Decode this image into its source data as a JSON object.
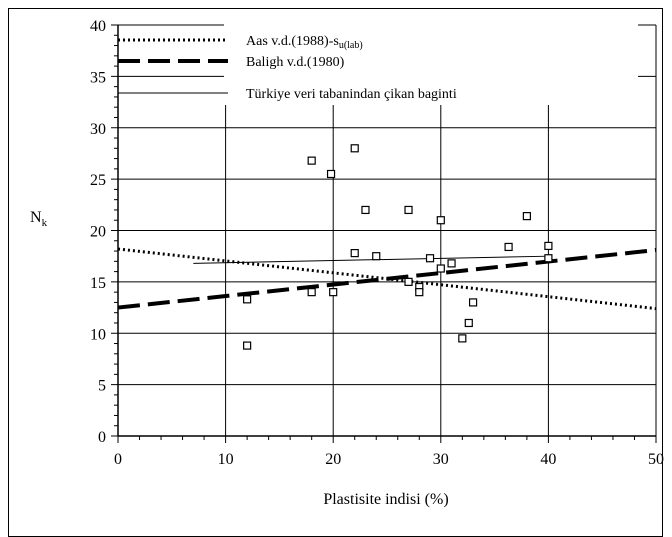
{
  "chart_data": {
    "type": "scatter",
    "title": "",
    "xlabel": "Plastisite indisi (%)",
    "ylabel": "N",
    "ylabel_sub": "k",
    "xlim": [
      0,
      50
    ],
    "ylim": [
      0,
      40
    ],
    "xticks": [
      0,
      10,
      20,
      30,
      40,
      50
    ],
    "yticks": [
      0,
      5,
      10,
      15,
      20,
      25,
      30,
      35,
      40
    ],
    "x_minor_step": 2,
    "y_minor_step": 1,
    "grid": true,
    "legend_position": "top-right",
    "scatter": {
      "marker": "open-square",
      "points": [
        [
          12,
          8.8
        ],
        [
          12,
          13.3
        ],
        [
          18,
          26.8
        ],
        [
          18,
          14.0
        ],
        [
          19.8,
          25.5
        ],
        [
          20,
          14.0
        ],
        [
          22,
          28.0
        ],
        [
          22,
          17.8
        ],
        [
          23,
          22.0
        ],
        [
          24,
          17.5
        ],
        [
          27,
          22.0
        ],
        [
          27,
          15.0
        ],
        [
          28,
          14.5
        ],
        [
          28,
          14.0
        ],
        [
          29,
          17.3
        ],
        [
          30,
          21.0
        ],
        [
          30,
          16.3
        ],
        [
          31,
          16.8
        ],
        [
          32,
          9.5
        ],
        [
          32.6,
          11.0
        ],
        [
          33,
          13.0
        ],
        [
          36.3,
          18.4
        ],
        [
          38,
          21.4
        ],
        [
          40,
          18.5
        ],
        [
          40,
          17.3
        ]
      ]
    },
    "series": [
      {
        "name": "Aas v.d.(1988)-s",
        "name_sub": "u(lab)",
        "style": "dotted",
        "x": [
          0,
          50
        ],
        "y": [
          18.2,
          12.4
        ]
      },
      {
        "name": "Baligh v.d.(1980)",
        "style": "dashed",
        "x": [
          0,
          50
        ],
        "y": [
          12.5,
          18.1
        ]
      },
      {
        "name": "Türkiye veri tabanindan çikan baginti",
        "style": "solid",
        "x": [
          7,
          40
        ],
        "y": [
          16.8,
          17.5
        ]
      }
    ]
  }
}
